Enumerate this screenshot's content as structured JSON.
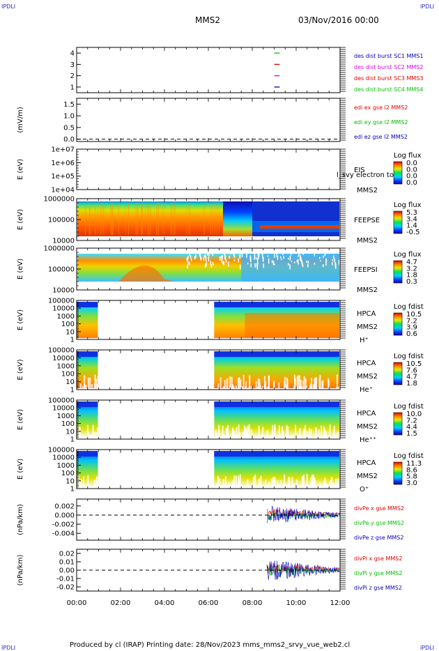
{
  "corners": {
    "tl": "IPDLI",
    "tr": "IPDLI",
    "bl": "IPDLI",
    "br": "IPDLI"
  },
  "header": {
    "spacecraft": "MMS2",
    "date": "03/Nov/2016 00:00"
  },
  "footer": {
    "text": "Produced by cl (IRAP)   Printing date: 28/Nov/2023   mms_mms2_srvy_vue_web2.cl"
  },
  "colors": {
    "sc1": "#0000c0",
    "sc2": "#e000e0",
    "sc3": "#e00000",
    "sc4": "#00c000",
    "x": "#e00000",
    "y": "#00c000",
    "z": "#0000c0"
  },
  "chart_data": {
    "type": "multi-panel time series",
    "x_range": [
      "00:00",
      "12:00"
    ],
    "x_ticks": [
      "00:00",
      "02:00",
      "04:00",
      "06:00",
      "08:00",
      "10:00",
      "12:00"
    ],
    "panels": [
      {
        "id": "burst",
        "ylabel": "",
        "yticks": [
          "4",
          "3",
          "2",
          "1"
        ],
        "ylim": [
          0.5,
          4.5
        ],
        "legend": [
          {
            "text": "des dist burst SC1 MMS1",
            "color": "sc1"
          },
          {
            "text": "des dist burst SC2 MMS2",
            "color": "sc2"
          },
          {
            "text": "des dist burst SC3 MMS3",
            "color": "sc3"
          },
          {
            "text": "des dist burst SC4 MMS4",
            "color": "sc4"
          }
        ],
        "marks": [
          {
            "sc": 4,
            "start": "09:00",
            "end": "09:15",
            "color": "sc4"
          },
          {
            "sc": 3,
            "start": "09:00",
            "end": "09:15",
            "color": "sc3"
          },
          {
            "sc": 2,
            "start": "09:00",
            "end": "09:15",
            "color": "sc2"
          },
          {
            "sc": 1,
            "start": "09:00",
            "end": "09:15",
            "color": "sc1"
          }
        ]
      },
      {
        "id": "edi",
        "ylabel": "(mV/m)",
        "yticks": [
          "1.5",
          "1.0",
          "0.5",
          "0.0"
        ],
        "ylim": [
          -0.1,
          1.75
        ],
        "legend": [
          {
            "text": "edi ex gse l2 MMS2",
            "color": "x"
          },
          {
            "text": "edi ey gse l2 MMS2",
            "color": "y"
          },
          {
            "text": "edi ez gse l2 MMS2",
            "color": "z"
          }
        ]
      },
      {
        "id": "eis",
        "ylabel": "E (eV)",
        "yticks": [
          "1e+07",
          "1e+06",
          "1e+05",
          "1e+04"
        ],
        "right_labels": [
          "EIS",
          "MMS2"
        ],
        "overlap_text": "l_svy electron to",
        "colorbar": {
          "title": "Log flux",
          "ticks": [
            "0.0",
            "0.0",
            "0.0",
            "0.0"
          ]
        }
      },
      {
        "id": "feepse",
        "ylabel": "E (eV)",
        "yticks": [
          "1000000",
          "100000",
          "10000"
        ],
        "right_labels": [
          "FEEPSE",
          "MMS2"
        ],
        "colorbar": {
          "title": "Log flux",
          "ticks": [
            "5.3",
            "3.4",
            "1.4",
            "-0.5"
          ]
        }
      },
      {
        "id": "feepsi",
        "ylabel": "E (eV)",
        "yticks": [
          "1000000",
          "100000",
          "10000"
        ],
        "right_labels": [
          "FEEPSI",
          "MMS2"
        ],
        "colorbar": {
          "title": "Log flux",
          "ticks": [
            "4.7",
            "3.2",
            "1.8",
            "0.3"
          ]
        }
      },
      {
        "id": "hpca_h",
        "ylabel": "E (eV)",
        "yticks": [
          "100000",
          "10000",
          "1000",
          "100",
          "10",
          "1"
        ],
        "right_labels": [
          "HPCA",
          "MMS2",
          "H⁺"
        ],
        "colorbar": {
          "title": "Log fdist",
          "ticks": [
            "10.5",
            "7.2",
            "3.9",
            "0.6"
          ]
        },
        "data_intervals": [
          [
            "00:00",
            "01:00"
          ],
          [
            "06:15",
            "12:00"
          ]
        ]
      },
      {
        "id": "hpca_he",
        "ylabel": "E (eV)",
        "yticks": [
          "100000",
          "10000",
          "1000",
          "100",
          "10",
          "1"
        ],
        "right_labels": [
          "HPCA",
          "MMS2",
          "He⁺"
        ],
        "colorbar": {
          "title": "Log fdist",
          "ticks": [
            "10.5",
            "7.6",
            "4.7",
            "1.8"
          ]
        },
        "data_intervals": [
          [
            "00:00",
            "01:00"
          ],
          [
            "06:15",
            "12:00"
          ]
        ]
      },
      {
        "id": "hpca_hepp",
        "ylabel": "E (eV)",
        "yticks": [
          "100000",
          "10000",
          "1000",
          "100",
          "10",
          "1"
        ],
        "right_labels": [
          "HPCA",
          "MMS2",
          "He⁺⁺"
        ],
        "colorbar": {
          "title": "Log fdist",
          "ticks": [
            "10.0",
            "7.2",
            "4.4",
            "1.5"
          ]
        },
        "data_intervals": [
          [
            "00:00",
            "01:00"
          ],
          [
            "06:15",
            "12:00"
          ]
        ]
      },
      {
        "id": "hpca_o",
        "ylabel": "E (eV)",
        "yticks": [
          "100000",
          "10000",
          "1000",
          "100",
          "10",
          "1"
        ],
        "right_labels": [
          "HPCA",
          "MMS2",
          "O⁺"
        ],
        "colorbar": {
          "title": "Log fdist",
          "ticks": [
            "11.3",
            "8.6",
            "5.8",
            "3.0"
          ]
        },
        "data_intervals": [
          [
            "00:00",
            "01:00"
          ],
          [
            "06:15",
            "12:00"
          ]
        ]
      },
      {
        "id": "divpe",
        "ylabel": "(nPa/km)",
        "yticks": [
          "0.002",
          "0.000",
          "-0.002",
          "-0.004"
        ],
        "ylim": [
          -0.0055,
          0.0035
        ],
        "legend": [
          {
            "text": "divPe x gse MMS2",
            "color": "x"
          },
          {
            "text": "divPe y gse MMS2",
            "color": "y"
          },
          {
            "text": "divPe z gse MMS2",
            "color": "z"
          }
        ],
        "data_start": "08:40"
      },
      {
        "id": "divpi",
        "ylabel": "(nPa/km)",
        "yticks": [
          "0.02",
          "0.01",
          "0.00",
          "-0.01",
          "-0.02"
        ],
        "ylim": [
          -0.025,
          0.025
        ],
        "legend": [
          {
            "text": "divPi x gse MMS2",
            "color": "x"
          },
          {
            "text": "divPi y gse MMS2",
            "color": "y"
          },
          {
            "text": "divPi z gse MMS2",
            "color": "z"
          }
        ],
        "data_start": "08:40"
      }
    ]
  }
}
